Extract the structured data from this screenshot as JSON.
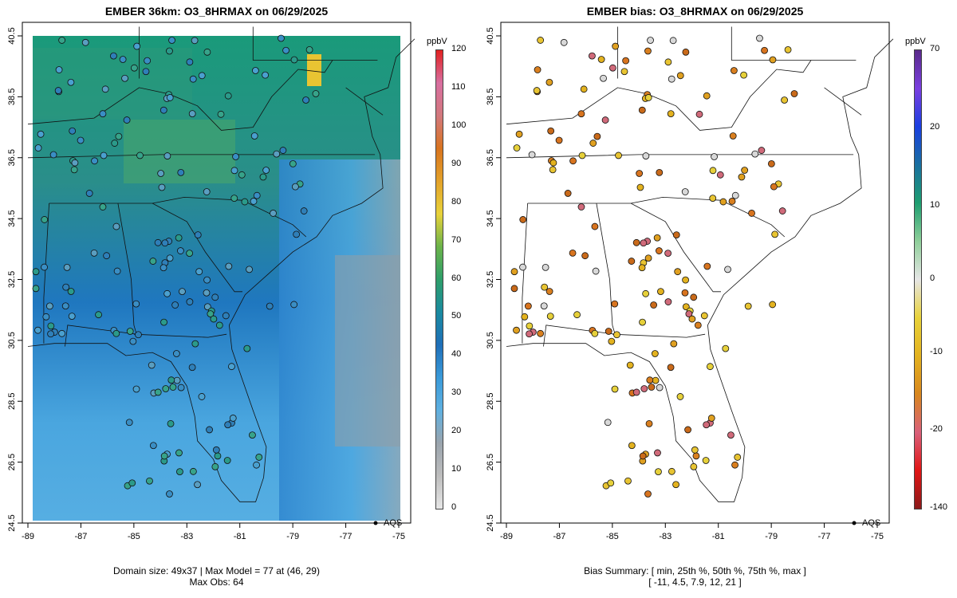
{
  "left_panel": {
    "title": "EMBER 36km: O3_8HRMAX on 06/29/2025",
    "footer_line1": "Domain size: 49x37 | Max Model = 77 at (46, 29)",
    "footer_line2": "Max Obs: 64",
    "legend_label": "AQS",
    "colorbar": {
      "unit": "ppbV",
      "ticks": [
        "0",
        "10",
        "20",
        "30",
        "40",
        "50",
        "60",
        "70",
        "80",
        "90",
        "100",
        "110",
        "120"
      ],
      "stops": [
        "#e6e6e6",
        "#bdbdbd",
        "#9aa4ad",
        "#5fb0e0",
        "#3a9ad9",
        "#1f6fb8",
        "#1a8aa0",
        "#2e9e6a",
        "#6bb34a",
        "#e8d23a",
        "#e3a22a",
        "#d8741f",
        "#d2787d",
        "#d86fa0",
        "#e02020"
      ]
    }
  },
  "right_panel": {
    "title": "EMBER bias: O3_8HRMAX on 06/29/2025",
    "footer_line1": "Bias Summary: [ min, 25th %, 50th %, 75th %, max ]",
    "footer_line2": "[ -11,   4.5,   7.9,   12,   21 ]",
    "legend_label": "AQS",
    "colorbar": {
      "unit": "ppbV",
      "ticks": [
        "70",
        "20",
        "10",
        "0",
        "-10",
        "-20",
        "-140"
      ],
      "stops": [
        "#8b1a1a",
        "#e01515",
        "#d9607a",
        "#d8871e",
        "#e3b21f",
        "#e8d23a",
        "#e6e6e6",
        "#8fcf9a",
        "#1e9e70",
        "#1a6fa0",
        "#1a3fe0",
        "#7a3fe0",
        "#5a2a8a"
      ]
    }
  },
  "axes": {
    "x_ticks": [
      "-89",
      "-87",
      "-85",
      "-83",
      "-81",
      "-79",
      "-77",
      "-75"
    ],
    "y_ticks": [
      "24.5",
      "26.5",
      "28.5",
      "30.5",
      "32.5",
      "34.5",
      "36.5",
      "38.5",
      "40.5"
    ]
  },
  "map_data": {
    "lon_range": [
      -89,
      -75
    ],
    "lat_range": [
      24.5,
      40.8
    ],
    "model_grid": "O3_8HRMAX model field (ppbV), 49x37 domain",
    "station_network": "AQS"
  }
}
